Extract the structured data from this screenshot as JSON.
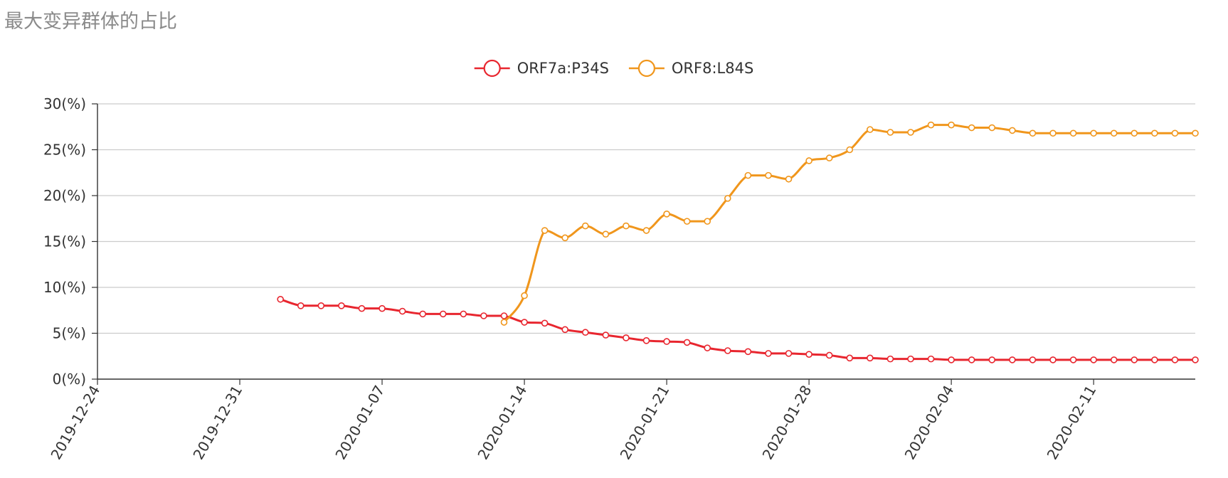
{
  "chart_data": {
    "type": "line",
    "title": "最大变异群体的占比",
    "y_axis": {
      "min": 0,
      "max": 30,
      "interval": 5,
      "tick_labels": [
        "0(%)",
        "5(%)",
        "10(%)",
        "15(%)",
        "20(%)",
        "25(%)",
        "30(%)"
      ]
    },
    "x_axis": {
      "type": "date",
      "min": "2019-12-24",
      "max": "2020-02-16",
      "tick_labels": [
        "2019-12-24",
        "2019-12-31",
        "2020-01-07",
        "2020-01-14",
        "2020-01-21",
        "2020-01-28",
        "2020-02-04",
        "2020-02-11"
      ]
    },
    "grid": true,
    "legend_position": "top-center",
    "series": [
      {
        "name": "ORF7a:P34S",
        "color": "#e8262f",
        "start_date": "2020-01-02",
        "values": [
          8.7,
          8.0,
          8.0,
          8.0,
          7.7,
          7.7,
          7.4,
          7.1,
          7.1,
          7.1,
          6.9,
          6.9,
          6.2,
          6.1,
          5.4,
          5.1,
          4.8,
          4.5,
          4.2,
          4.1,
          4.0,
          3.4,
          3.1,
          3.0,
          2.8,
          2.8,
          2.7,
          2.6,
          2.3,
          2.3,
          2.2,
          2.2,
          2.2,
          2.1,
          2.1,
          2.1,
          2.1,
          2.1,
          2.1,
          2.1,
          2.1,
          2.1,
          2.1,
          2.1,
          2.1,
          2.1
        ]
      },
      {
        "name": "ORF8:L84S",
        "color": "#f0961c",
        "start_date": "2020-01-13",
        "values": [
          6.2,
          9.1,
          16.2,
          15.4,
          16.7,
          15.8,
          16.7,
          16.2,
          18.0,
          17.2,
          17.2,
          19.7,
          22.2,
          22.2,
          21.8,
          23.8,
          24.1,
          25.0,
          27.2,
          26.9,
          26.9,
          27.7,
          27.7,
          27.4,
          27.4,
          27.1,
          26.8,
          26.8,
          26.8,
          26.8,
          26.8,
          26.8,
          26.8,
          26.8,
          26.8
        ]
      }
    ]
  }
}
